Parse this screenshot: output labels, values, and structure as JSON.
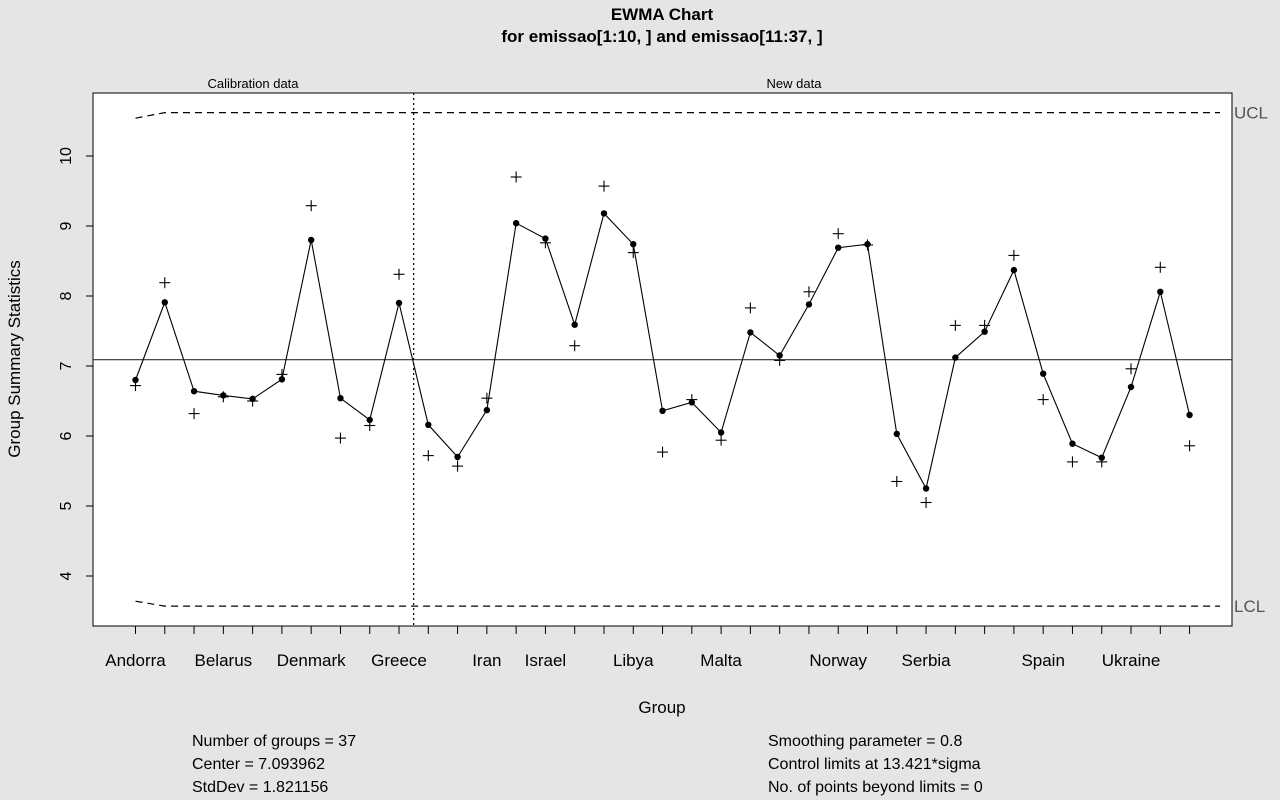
{
  "chart_data": {
    "type": "line",
    "title": "EWMA Chart",
    "subtitle": "for emissao[1:10, ] and emissao[11:37, ]",
    "xlabel": "Group",
    "ylabel": "Group Summary Statistics",
    "ylim": [
      3.3,
      10.9
    ],
    "yticks": [
      4,
      5,
      6,
      7,
      8,
      9,
      10
    ],
    "region_labels": [
      "Calibration data",
      "New data"
    ],
    "calibration_groups": 10,
    "tick_labels": [
      {
        "index": 1,
        "label": "Andorra"
      },
      {
        "index": 4,
        "label": "Belarus"
      },
      {
        "index": 7,
        "label": "Denmark"
      },
      {
        "index": 10,
        "label": "Greece"
      },
      {
        "index": 13,
        "label": "Iran"
      },
      {
        "index": 15,
        "label": "Israel"
      },
      {
        "index": 18,
        "label": "Libya"
      },
      {
        "index": 21,
        "label": "Malta"
      },
      {
        "index": 25,
        "label": "Norway"
      },
      {
        "index": 28,
        "label": "Serbia"
      },
      {
        "index": 32,
        "label": "Spain"
      },
      {
        "index": 35,
        "label": "Ukraine"
      }
    ],
    "center": 7.09,
    "ucl_label": "UCL",
    "lcl_label": "LCL",
    "ucl": [
      10.54,
      10.62,
      10.62,
      10.62,
      10.62,
      10.62,
      10.62,
      10.62,
      10.62,
      10.62,
      10.62,
      10.62,
      10.62,
      10.62,
      10.62,
      10.62,
      10.62,
      10.62,
      10.62,
      10.62,
      10.62,
      10.62,
      10.62,
      10.62,
      10.62,
      10.62,
      10.62,
      10.62,
      10.62,
      10.62,
      10.62,
      10.62,
      10.62,
      10.62,
      10.62,
      10.62,
      10.62
    ],
    "lcl": [
      3.64,
      3.57,
      3.57,
      3.57,
      3.57,
      3.57,
      3.57,
      3.57,
      3.57,
      3.57,
      3.57,
      3.57,
      3.57,
      3.57,
      3.57,
      3.57,
      3.57,
      3.57,
      3.57,
      3.57,
      3.57,
      3.57,
      3.57,
      3.57,
      3.57,
      3.57,
      3.57,
      3.57,
      3.57,
      3.57,
      3.57,
      3.57,
      3.57,
      3.57,
      3.57,
      3.57,
      3.57
    ],
    "series": [
      {
        "name": "EWMA",
        "marker": "dot",
        "values": [
          6.8,
          7.91,
          6.64,
          6.58,
          6.53,
          6.81,
          8.8,
          6.54,
          6.23,
          7.9,
          6.16,
          5.7,
          6.37,
          9.04,
          8.82,
          7.59,
          9.18,
          8.74,
          6.36,
          6.48,
          6.05,
          7.48,
          7.15,
          7.88,
          8.69,
          8.74,
          6.03,
          5.25,
          7.12,
          7.49,
          8.37,
          6.89,
          5.89,
          5.69,
          6.7,
          8.06,
          6.3
        ]
      },
      {
        "name": "Group statistics",
        "marker": "plus",
        "values": [
          6.72,
          8.19,
          6.32,
          6.56,
          6.5,
          6.88,
          9.29,
          5.97,
          6.15,
          8.31,
          5.72,
          5.57,
          6.54,
          9.7,
          8.76,
          7.29,
          9.57,
          8.62,
          5.77,
          6.52,
          5.94,
          7.83,
          7.08,
          8.06,
          8.89,
          8.73,
          5.35,
          5.05,
          7.58,
          7.58,
          8.58,
          6.52,
          5.63,
          5.63,
          6.96,
          8.41,
          5.86
        ]
      }
    ],
    "stats_left": [
      "Number of groups = 37",
      "Center = 7.093962",
      "StdDev = 1.821156"
    ],
    "stats_right": [
      "Smoothing parameter =  0.8",
      "Control limits at 13.421*sigma",
      "No. of points beyond limits = 0"
    ],
    "colors": {
      "background": "#e5e5e5",
      "plot_background": "#ffffff",
      "line": "#000000",
      "limit_label": "#555555"
    }
  }
}
